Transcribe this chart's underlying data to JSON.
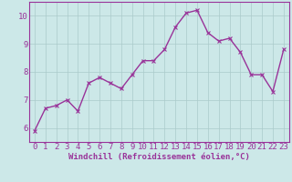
{
  "x": [
    0,
    1,
    2,
    3,
    4,
    5,
    6,
    7,
    8,
    9,
    10,
    11,
    12,
    13,
    14,
    15,
    16,
    17,
    18,
    19,
    20,
    21,
    22,
    23
  ],
  "y": [
    5.9,
    6.7,
    6.8,
    7.0,
    6.6,
    7.6,
    7.8,
    7.6,
    7.4,
    7.9,
    8.4,
    8.4,
    8.8,
    9.6,
    10.1,
    10.2,
    9.4,
    9.1,
    9.2,
    8.7,
    7.9,
    7.9,
    7.3,
    8.8
  ],
  "line_color": "#993399",
  "marker": "x",
  "marker_color": "#993399",
  "xlabel": "Windchill (Refroidissement éolien,°C)",
  "xlabel_color": "#993399",
  "bg_color": "#cce8e8",
  "grid_color": "#aacaca",
  "tick_color": "#993399",
  "ylim": [
    5.5,
    10.5
  ],
  "xlim": [
    -0.5,
    23.5
  ],
  "yticks": [
    6,
    7,
    8,
    9,
    10
  ],
  "xticks": [
    0,
    1,
    2,
    3,
    4,
    5,
    6,
    7,
    8,
    9,
    10,
    11,
    12,
    13,
    14,
    15,
    16,
    17,
    18,
    19,
    20,
    21,
    22,
    23
  ],
  "spine_color": "#993399",
  "font_size_xlabel": 6.5,
  "font_size_ticks": 6.5,
  "linewidth": 1.0,
  "markersize": 2.5
}
